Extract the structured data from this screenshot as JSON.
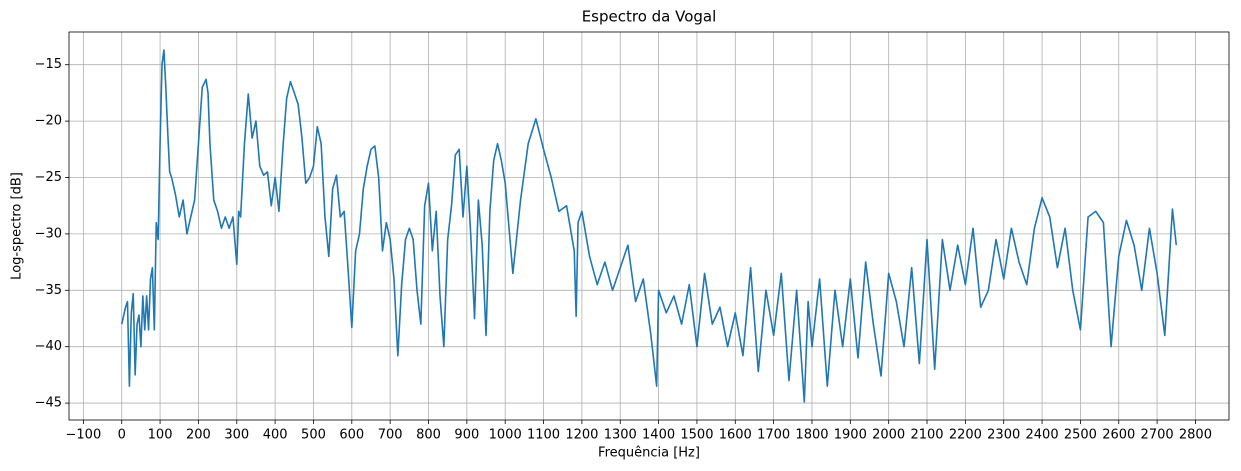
{
  "chart_data": {
    "type": "line",
    "title": "Espectro da Vogal",
    "x_label": "Frequência [Hz]",
    "y_label": "Log-spectro [dB]",
    "x": [
      0,
      10,
      15,
      20,
      25,
      30,
      35,
      40,
      45,
      50,
      55,
      60,
      65,
      70,
      75,
      80,
      85,
      90,
      95,
      100,
      105,
      110,
      115,
      120,
      125,
      130,
      140,
      150,
      160,
      170,
      180,
      190,
      200,
      210,
      220,
      225,
      230,
      240,
      250,
      260,
      270,
      280,
      290,
      300,
      305,
      310,
      320,
      330,
      340,
      350,
      360,
      370,
      380,
      390,
      400,
      410,
      420,
      430,
      440,
      450,
      460,
      470,
      480,
      490,
      500,
      510,
      520,
      530,
      540,
      550,
      560,
      570,
      580,
      590,
      600,
      610,
      620,
      630,
      640,
      650,
      660,
      670,
      680,
      690,
      700,
      710,
      720,
      730,
      740,
      750,
      760,
      770,
      780,
      790,
      800,
      810,
      820,
      830,
      840,
      850,
      860,
      870,
      880,
      890,
      900,
      910,
      920,
      930,
      940,
      950,
      960,
      970,
      980,
      990,
      1000,
      1020,
      1040,
      1060,
      1080,
      1100,
      1120,
      1140,
      1160,
      1180,
      1185,
      1190,
      1200,
      1220,
      1240,
      1260,
      1280,
      1300,
      1320,
      1340,
      1360,
      1380,
      1395,
      1400,
      1420,
      1440,
      1460,
      1480,
      1500,
      1520,
      1540,
      1560,
      1580,
      1600,
      1620,
      1640,
      1660,
      1680,
      1700,
      1720,
      1740,
      1760,
      1780,
      1790,
      1800,
      1820,
      1840,
      1860,
      1880,
      1900,
      1920,
      1940,
      1960,
      1980,
      2000,
      2020,
      2040,
      2060,
      2080,
      2100,
      2120,
      2140,
      2160,
      2180,
      2200,
      2220,
      2240,
      2260,
      2280,
      2300,
      2320,
      2340,
      2360,
      2380,
      2400,
      2420,
      2440,
      2460,
      2480,
      2500,
      2520,
      2540,
      2560,
      2580,
      2600,
      2620,
      2640,
      2660,
      2680,
      2700,
      2720,
      2740,
      2750
    ],
    "series": [
      {
        "color": "#1f77b4",
        "values": [
          -38,
          -36.5,
          -36,
          -43.5,
          -37,
          -35.3,
          -42.5,
          -38,
          -37.2,
          -40,
          -35.5,
          -38.5,
          -35.5,
          -38.5,
          -34,
          -33,
          -38.5,
          -29,
          -30.5,
          -22,
          -15,
          -13.7,
          -17,
          -21,
          -24.5,
          -25,
          -26.5,
          -28.5,
          -27,
          -30,
          -28.5,
          -27,
          -22,
          -17,
          -16.3,
          -17.5,
          -22,
          -27,
          -28,
          -29.5,
          -28.5,
          -29.5,
          -28.5,
          -32.7,
          -28,
          -28.5,
          -22,
          -17.6,
          -21.5,
          -20,
          -24,
          -24.8,
          -24.5,
          -27.5,
          -25,
          -28,
          -22.5,
          -18,
          -16.5,
          -17.5,
          -18.5,
          -21.5,
          -25.5,
          -25,
          -24,
          -20.5,
          -22,
          -28.5,
          -32,
          -26,
          -24.8,
          -28.5,
          -28,
          -33,
          -38.3,
          -31.5,
          -30,
          -26,
          -24,
          -22.5,
          -22.2,
          -25,
          -31.5,
          -29,
          -30.5,
          -34,
          -40.8,
          -34.5,
          -30.5,
          -29.5,
          -30.5,
          -35,
          -38,
          -27.5,
          -25.5,
          -31.5,
          -28,
          -35.5,
          -40,
          -30.5,
          -27.5,
          -23,
          -22.5,
          -28.5,
          -24,
          -30,
          -37.5,
          -27,
          -31,
          -39,
          -28,
          -23.5,
          -22,
          -23.5,
          -25.5,
          -33.5,
          -27,
          -22,
          -19.8,
          -22.5,
          -25,
          -28,
          -27.5,
          -31.5,
          -37.3,
          -29,
          -28,
          -32,
          -34.5,
          -32.5,
          -35,
          -33,
          -31,
          -36,
          -34,
          -39,
          -43.5,
          -35,
          -37,
          -35.5,
          -38,
          -34.5,
          -40,
          -33.5,
          -38,
          -36.5,
          -40,
          -37,
          -40.8,
          -33,
          -42.2,
          -35,
          -39,
          -33.5,
          -43,
          -35,
          -44.9,
          -36,
          -40,
          -34,
          -43.5,
          -35,
          -40,
          -34,
          -41,
          -32.5,
          -38,
          -42.6,
          -33.5,
          -36,
          -40,
          -33,
          -41.5,
          -30.5,
          -42,
          -30.5,
          -35,
          -31,
          -34.5,
          -29.5,
          -36.5,
          -35,
          -30.5,
          -34,
          -29.5,
          -32.5,
          -34.5,
          -29.5,
          -26.8,
          -28.5,
          -33,
          -29.5,
          -35,
          -38.5,
          -28.5,
          -28,
          -29,
          -40,
          -32,
          -28.8,
          -31,
          -35,
          -29.5,
          -33.5,
          -39,
          -27.8,
          -31
        ]
      }
    ],
    "xlim": [
      -137.5,
      2887.5
    ],
    "ylim": [
      -46.5,
      -12.1
    ],
    "xticks": [
      {
        "value": -100,
        "label": "−100"
      },
      0,
      100,
      200,
      300,
      400,
      500,
      600,
      700,
      800,
      900,
      1000,
      1100,
      1200,
      1300,
      1400,
      1500,
      1600,
      1700,
      1800,
      1900,
      2000,
      2100,
      2200,
      2300,
      2400,
      2500,
      2600,
      2700,
      2800
    ],
    "yticks": [
      {
        "value": -45,
        "label": "−45"
      },
      {
        "value": -40,
        "label": "−40"
      },
      {
        "value": -35,
        "label": "−35"
      },
      {
        "value": -30,
        "label": "−30"
      },
      {
        "value": -25,
        "label": "−25"
      },
      {
        "value": -20,
        "label": "−20"
      },
      {
        "value": -15,
        "label": "−15"
      }
    ],
    "grid": true
  }
}
